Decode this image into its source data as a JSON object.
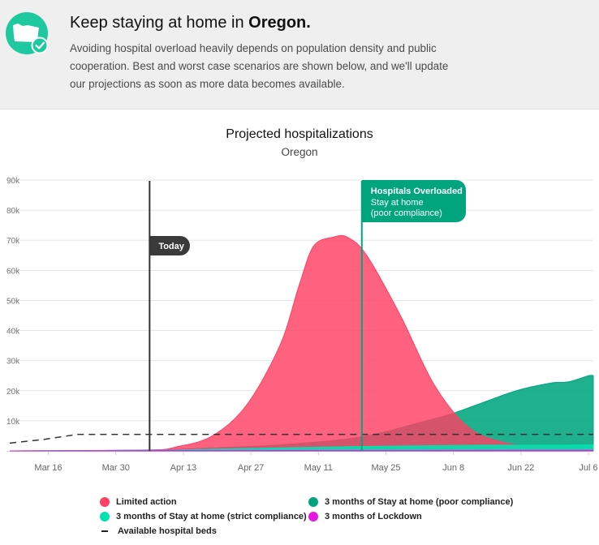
{
  "banner": {
    "title_prefix": "Keep staying at home in ",
    "title_state": "Oregon.",
    "description": "Avoiding hospital overload heavily depends on population density and public cooperation. Best and worst case scenarios are shown below, and we'll update our projections as soon as more data becomes available.",
    "icon": "oregon-state-check-icon"
  },
  "colors": {
    "limited_action": "#ff3f63",
    "poor_compliance": "#00a57e",
    "strict_compliance": "#00e2b0",
    "lockdown": "#e418e0",
    "hospital_beds": "#333333",
    "today_marker": "#333333",
    "overloaded_marker": "#00a57e"
  },
  "chart_data": {
    "type": "area",
    "title": "Projected hospitalizations",
    "subtitle": "Oregon",
    "y_ticks": [
      "90k",
      "80k",
      "70k",
      "60k",
      "50k",
      "40k",
      "30k",
      "20k",
      "10k"
    ],
    "x_ticks": [
      "Mar 16",
      "Mar 30",
      "Apr 13",
      "Apr 27",
      "May 11",
      "May 25",
      "Jun 8",
      "Jun 22",
      "Jul 6"
    ],
    "ylim": [
      0,
      90000
    ],
    "xlim": [
      "2020-03-08",
      "2020-07-07"
    ],
    "grid": true,
    "series": [
      {
        "name": "3 months of Stay at home (poor compliance)",
        "key": "poor_compliance",
        "points": [
          [
            "2020-03-08",
            0
          ],
          [
            "2020-04-05",
            300
          ],
          [
            "2020-04-19",
            1000
          ],
          [
            "2020-05-03",
            2000
          ],
          [
            "2020-05-17",
            4000
          ],
          [
            "2020-05-24",
            6000
          ],
          [
            "2020-05-31",
            9000
          ],
          [
            "2020-06-07",
            12000
          ],
          [
            "2020-06-14",
            16000
          ],
          [
            "2020-06-21",
            20000
          ],
          [
            "2020-06-28",
            22500
          ],
          [
            "2020-07-02",
            23000
          ],
          [
            "2020-07-06",
            25000
          ],
          [
            "2020-07-07",
            25000
          ]
        ]
      },
      {
        "name": "Limited action",
        "key": "limited_action",
        "points": [
          [
            "2020-03-08",
            0
          ],
          [
            "2020-04-05",
            200
          ],
          [
            "2020-04-12",
            1500
          ],
          [
            "2020-04-19",
            5000
          ],
          [
            "2020-04-26",
            15000
          ],
          [
            "2020-05-03",
            35000
          ],
          [
            "2020-05-07",
            55000
          ],
          [
            "2020-05-10",
            68000
          ],
          [
            "2020-05-14",
            71000
          ],
          [
            "2020-05-17",
            71000
          ],
          [
            "2020-05-21",
            65000
          ],
          [
            "2020-05-28",
            45000
          ],
          [
            "2020-06-04",
            22000
          ],
          [
            "2020-06-11",
            8000
          ],
          [
            "2020-06-18",
            3000
          ],
          [
            "2020-06-25",
            1500
          ],
          [
            "2020-07-07",
            1000
          ]
        ]
      },
      {
        "name": "3 months of Stay at home (strict compliance)",
        "key": "strict_compliance",
        "points": [
          [
            "2020-03-08",
            0
          ],
          [
            "2020-04-05",
            200
          ],
          [
            "2020-04-19",
            600
          ],
          [
            "2020-05-03",
            1000
          ],
          [
            "2020-05-17",
            1400
          ],
          [
            "2020-05-31",
            1700
          ],
          [
            "2020-06-14",
            1900
          ],
          [
            "2020-06-28",
            1900
          ],
          [
            "2020-07-07",
            2000
          ]
        ]
      },
      {
        "name": "3 months of Lockdown",
        "key": "lockdown",
        "points": [
          [
            "2020-03-08",
            0
          ],
          [
            "2020-04-05",
            100
          ],
          [
            "2020-07-07",
            150
          ]
        ]
      }
    ],
    "hospital_beds": {
      "name": "Available hospital beds",
      "points": [
        [
          "2020-03-08",
          2600
        ],
        [
          "2020-03-15",
          3800
        ],
        [
          "2020-03-22",
          5500
        ],
        [
          "2020-07-07",
          5500
        ]
      ]
    },
    "markers": [
      {
        "label": "Today",
        "date": "2020-04-06"
      },
      {
        "title": "Hospitals Overloaded",
        "subtitle_lines": [
          "Stay at home",
          "(poor compliance)"
        ],
        "date": "2020-05-20"
      }
    ]
  }
}
